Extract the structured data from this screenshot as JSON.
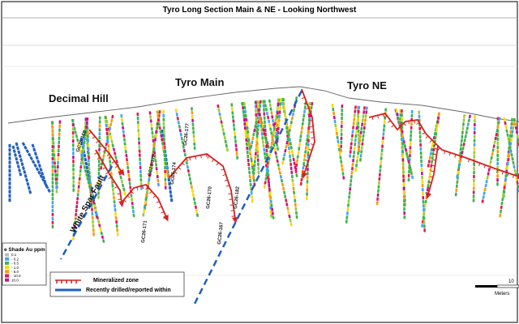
{
  "header": {
    "title": "Tyro Long Section Main & NE - Looking Northwest"
  },
  "areas": [
    "Decimal Hill",
    "Tyro Main",
    "Tyro NE"
  ],
  "fault": "White Spar Fault",
  "holes": [
    "GC26-168",
    "GC26-172",
    "GC26-171",
    "GC26-170",
    "GC26-174",
    "GC26-167",
    "GC26-182",
    "GC26-177"
  ],
  "legend": {
    "items": [
      "Mineralized zone",
      "Recently drilled/reported within"
    ]
  },
  "grade_legend": {
    "title": "e Shade Au ppm",
    "items": [
      "0.1",
      "- 0.2",
      "- 0.5",
      "- 1.0",
      "- 5.0",
      "- 10.0",
      "10.0"
    ]
  },
  "scale": {
    "unit": "Meters",
    "value": "10"
  }
}
